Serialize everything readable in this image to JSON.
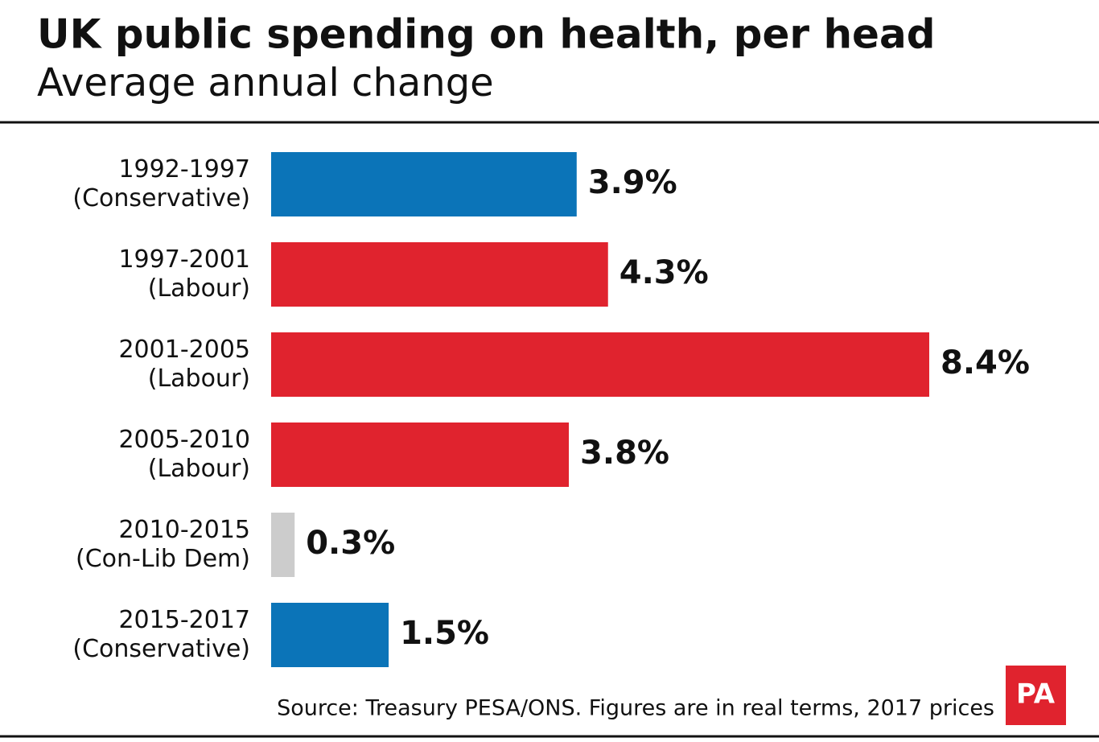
{
  "chart_data": {
    "type": "bar",
    "orientation": "horizontal",
    "title": "UK public spending on health, per head",
    "subtitle": "Average annual change",
    "categories": [
      "1992-1997\n(Conservative)",
      "1997-2001\n(Labour)",
      "2001-2005\n(Labour)",
      "2005-2010\n(Labour)",
      "2010-2015\n(Con-Lib Dem)",
      "2015-2017\n(Conservative)"
    ],
    "values": [
      3.9,
      4.3,
      8.4,
      3.8,
      0.3,
      1.5
    ],
    "value_labels": [
      "3.9%",
      "4.3%",
      "8.4%",
      "3.8%",
      "0.3%",
      "1.5%"
    ],
    "colors": [
      "#0b74b8",
      "#e0232e",
      "#e0232e",
      "#e0232e",
      "#cccccc",
      "#0b74b8"
    ],
    "source": "Source: Treasury PESA/ONS. Figures are in real terms, 2017 prices",
    "logo": "PA"
  }
}
